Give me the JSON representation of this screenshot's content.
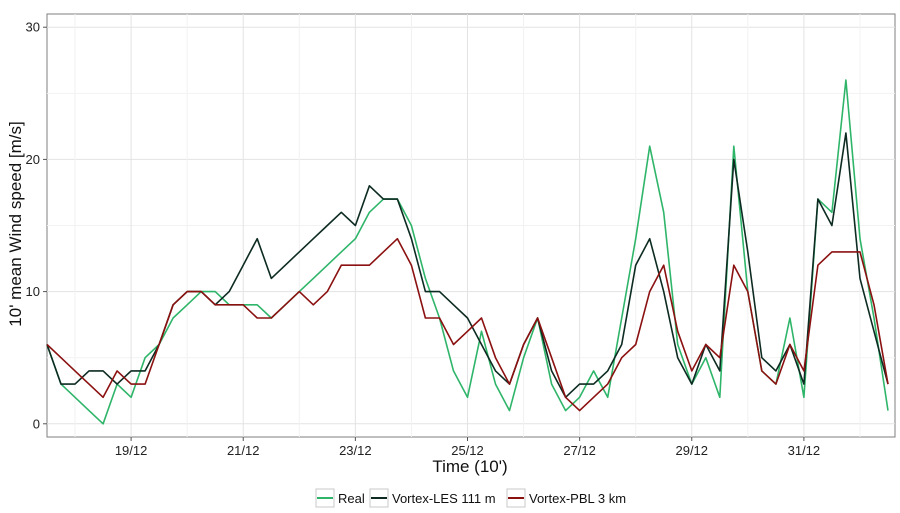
{
  "chart_data": {
    "type": "line",
    "title": "",
    "xlabel": "Time (10')",
    "ylabel": "10' mean Wind speed [m/s]",
    "x_ticks": [
      "19/12",
      "21/12",
      "23/12",
      "25/12",
      "27/12",
      "29/12",
      "31/12"
    ],
    "y_ticks": [
      "0",
      "10",
      "20",
      "30"
    ],
    "xlim": [
      "2013-12-17 12:00",
      "2014-01-01 15:00"
    ],
    "ylim": [
      -1,
      31
    ],
    "grid": true,
    "legend_position": "bottom",
    "series": [
      {
        "name": "Real",
        "color": "#2fb56a",
        "x": [
          "2013-12-17 12:00",
          "2013-12-17 18:00",
          "2013-12-18 00:00",
          "2013-12-18 06:00",
          "2013-12-18 12:00",
          "2013-12-18 18:00",
          "2013-12-19 00:00",
          "2013-12-19 06:00",
          "2013-12-19 12:00",
          "2013-12-19 18:00",
          "2013-12-20 00:00",
          "2013-12-20 06:00",
          "2013-12-20 12:00",
          "2013-12-20 18:00",
          "2013-12-21 00:00",
          "2013-12-21 06:00",
          "2013-12-21 12:00",
          "2013-12-21 18:00",
          "2013-12-22 00:00",
          "2013-12-22 06:00",
          "2013-12-22 12:00",
          "2013-12-22 18:00",
          "2013-12-23 00:00",
          "2013-12-23 06:00",
          "2013-12-23 12:00",
          "2013-12-23 18:00",
          "2013-12-24 00:00",
          "2013-12-24 06:00",
          "2013-12-24 12:00",
          "2013-12-24 18:00",
          "2013-12-25 00:00",
          "2013-12-25 06:00",
          "2013-12-25 12:00",
          "2013-12-25 18:00",
          "2013-12-26 00:00",
          "2013-12-26 06:00",
          "2013-12-26 12:00",
          "2013-12-26 18:00",
          "2013-12-27 00:00",
          "2013-12-27 06:00",
          "2013-12-27 12:00",
          "2013-12-27 18:00",
          "2013-12-28 00:00",
          "2013-12-28 06:00",
          "2013-12-28 12:00",
          "2013-12-28 18:00",
          "2013-12-29 00:00",
          "2013-12-29 06:00",
          "2013-12-29 12:00",
          "2013-12-29 18:00",
          "2013-12-30 00:00",
          "2013-12-30 06:00",
          "2013-12-30 12:00",
          "2013-12-30 18:00",
          "2013-12-31 00:00",
          "2013-12-31 06:00",
          "2013-12-31 12:00",
          "2013-12-31 18:00",
          "2014-01-01 00:00",
          "2014-01-01 06:00",
          "2014-01-01 12:00"
        ],
        "y": [
          6,
          3,
          2,
          1,
          0,
          3,
          2,
          5,
          6,
          8,
          9,
          10,
          10,
          9,
          9,
          9,
          8,
          9,
          10,
          11,
          12,
          13,
          14,
          16,
          17,
          17,
          15,
          11,
          8,
          4,
          2,
          7,
          3,
          1,
          5,
          8,
          3,
          1,
          2,
          4,
          2,
          8,
          14,
          21,
          16,
          6,
          3,
          5,
          2,
          21,
          10,
          4,
          3,
          8,
          2,
          17,
          16,
          26,
          14,
          8,
          1
        ]
      },
      {
        "name": "Vortex-LES 111 m",
        "color": "#0d2b22",
        "x": [
          "2013-12-17 12:00",
          "2013-12-17 18:00",
          "2013-12-18 00:00",
          "2013-12-18 06:00",
          "2013-12-18 12:00",
          "2013-12-18 18:00",
          "2013-12-19 00:00",
          "2013-12-19 06:00",
          "2013-12-19 12:00",
          "2013-12-19 18:00",
          "2013-12-20 00:00",
          "2013-12-20 06:00",
          "2013-12-20 12:00",
          "2013-12-20 18:00",
          "2013-12-21 00:00",
          "2013-12-21 06:00",
          "2013-12-21 12:00",
          "2013-12-21 18:00",
          "2013-12-22 00:00",
          "2013-12-22 06:00",
          "2013-12-22 12:00",
          "2013-12-22 18:00",
          "2013-12-23 00:00",
          "2013-12-23 06:00",
          "2013-12-23 12:00",
          "2013-12-23 18:00",
          "2013-12-24 00:00",
          "2013-12-24 06:00",
          "2013-12-24 12:00",
          "2013-12-24 18:00",
          "2013-12-25 00:00",
          "2013-12-25 06:00",
          "2013-12-25 12:00",
          "2013-12-25 18:00",
          "2013-12-26 00:00",
          "2013-12-26 06:00",
          "2013-12-26 12:00",
          "2013-12-26 18:00",
          "2013-12-27 00:00",
          "2013-12-27 06:00",
          "2013-12-27 12:00",
          "2013-12-27 18:00",
          "2013-12-28 00:00",
          "2013-12-28 06:00",
          "2013-12-28 12:00",
          "2013-12-28 18:00",
          "2013-12-29 00:00",
          "2013-12-29 06:00",
          "2013-12-29 12:00",
          "2013-12-29 18:00",
          "2013-12-30 00:00",
          "2013-12-30 06:00",
          "2013-12-30 12:00",
          "2013-12-30 18:00",
          "2013-12-31 00:00",
          "2013-12-31 06:00",
          "2013-12-31 12:00",
          "2013-12-31 18:00",
          "2014-01-01 00:00",
          "2014-01-01 06:00",
          "2014-01-01 12:00"
        ],
        "y": [
          6,
          3,
          3,
          4,
          4,
          3,
          4,
          4,
          6,
          9,
          10,
          10,
          9,
          10,
          12,
          14,
          11,
          12,
          13,
          14,
          15,
          16,
          15,
          18,
          17,
          17,
          14,
          10,
          10,
          9,
          8,
          6,
          4,
          3,
          6,
          8,
          4,
          2,
          3,
          3,
          4,
          6,
          12,
          14,
          10,
          5,
          3,
          6,
          4,
          20,
          13,
          5,
          4,
          6,
          3,
          17,
          15,
          22,
          11,
          7,
          3
        ]
      },
      {
        "name": "Vortex-PBL 3 km",
        "color": "#8b1111",
        "x": [
          "2013-12-17 12:00",
          "2013-12-17 18:00",
          "2013-12-18 00:00",
          "2013-12-18 06:00",
          "2013-12-18 12:00",
          "2013-12-18 18:00",
          "2013-12-19 00:00",
          "2013-12-19 06:00",
          "2013-12-19 12:00",
          "2013-12-19 18:00",
          "2013-12-20 00:00",
          "2013-12-20 06:00",
          "2013-12-20 12:00",
          "2013-12-20 18:00",
          "2013-12-21 00:00",
          "2013-12-21 06:00",
          "2013-12-21 12:00",
          "2013-12-21 18:00",
          "2013-12-22 00:00",
          "2013-12-22 06:00",
          "2013-12-22 12:00",
          "2013-12-22 18:00",
          "2013-12-23 00:00",
          "2013-12-23 06:00",
          "2013-12-23 12:00",
          "2013-12-23 18:00",
          "2013-12-24 00:00",
          "2013-12-24 06:00",
          "2013-12-24 12:00",
          "2013-12-24 18:00",
          "2013-12-25 00:00",
          "2013-12-25 06:00",
          "2013-12-25 12:00",
          "2013-12-25 18:00",
          "2013-12-26 00:00",
          "2013-12-26 06:00",
          "2013-12-26 12:00",
          "2013-12-26 18:00",
          "2013-12-27 00:00",
          "2013-12-27 06:00",
          "2013-12-27 12:00",
          "2013-12-27 18:00",
          "2013-12-28 00:00",
          "2013-12-28 06:00",
          "2013-12-28 12:00",
          "2013-12-28 18:00",
          "2013-12-29 00:00",
          "2013-12-29 06:00",
          "2013-12-29 12:00",
          "2013-12-29 18:00",
          "2013-12-30 00:00",
          "2013-12-30 06:00",
          "2013-12-30 12:00",
          "2013-12-30 18:00",
          "2013-12-31 00:00",
          "2013-12-31 06:00",
          "2013-12-31 12:00",
          "2013-12-31 18:00",
          "2014-01-01 00:00",
          "2014-01-01 06:00",
          "2014-01-01 12:00"
        ],
        "y": [
          6,
          5,
          4,
          3,
          2,
          4,
          3,
          3,
          6,
          9,
          10,
          10,
          9,
          9,
          9,
          8,
          8,
          9,
          10,
          9,
          10,
          12,
          12,
          12,
          13,
          14,
          12,
          8,
          8,
          6,
          7,
          8,
          5,
          3,
          6,
          8,
          5,
          2,
          1,
          2,
          3,
          5,
          6,
          10,
          12,
          7,
          4,
          6,
          5,
          12,
          10,
          4,
          3,
          6,
          4,
          12,
          13,
          13,
          13,
          9,
          3
        ]
      }
    ]
  }
}
